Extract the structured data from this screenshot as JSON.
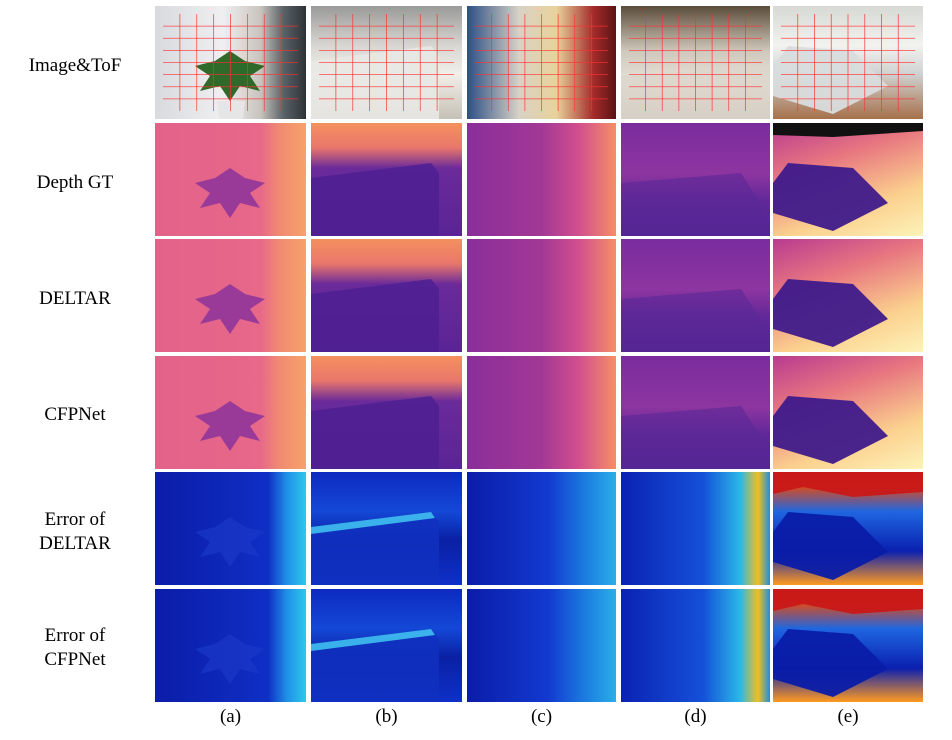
{
  "rows": [
    {
      "id": "image-tof",
      "label_lines": [
        "Image&ToF"
      ],
      "kind": "rgb"
    },
    {
      "id": "depth-gt",
      "label_lines": [
        "Depth GT"
      ],
      "kind": "depth"
    },
    {
      "id": "deltar",
      "label_lines": [
        "DELTAR"
      ],
      "kind": "depth"
    },
    {
      "id": "cfpnet",
      "label_lines": [
        "CFPNet"
      ],
      "kind": "depth"
    },
    {
      "id": "error-deltar",
      "label_lines": [
        "Error of",
        "DELTAR"
      ],
      "kind": "error"
    },
    {
      "id": "error-cfpnet",
      "label_lines": [
        "Error of",
        "CFPNet"
      ],
      "kind": "error"
    }
  ],
  "columns": [
    "(a)",
    "(b)",
    "(c)",
    "(d)",
    "(e)"
  ],
  "palette": {
    "depth_near": "#4a1f8a",
    "depth_mid": "#b03c8c",
    "depth_far": "#f4a65a",
    "depth_farthest": "#fdf0b0",
    "error_low": "#0a1fb0",
    "error_mid": "#1fb0e8",
    "error_high": "#c81818",
    "tof_grid": "#ff3030"
  }
}
